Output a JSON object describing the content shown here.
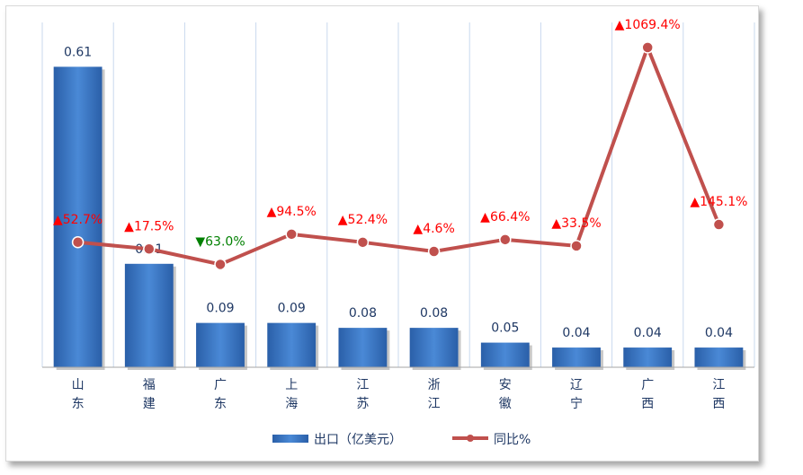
{
  "chart_data": {
    "type": "bar",
    "categories": [
      "山东",
      "福建",
      "广东",
      "上海",
      "江苏",
      "浙江",
      "安徽",
      "辽宁",
      "广西",
      "江西"
    ],
    "series": [
      {
        "name": "出口（亿美元）",
        "type": "bar",
        "values": [
          0.61,
          0.21,
          0.09,
          0.09,
          0.08,
          0.08,
          0.05,
          0.04,
          0.04,
          0.04
        ],
        "labels": [
          "0.61",
          "0.21",
          "0.09",
          "0.09",
          "0.08",
          "0.08",
          "0.05",
          "0.04",
          "0.04",
          "0.04"
        ],
        "color": "#2e6bbf"
      },
      {
        "name": "同比%",
        "type": "line",
        "values": [
          52.7,
          17.5,
          -63.0,
          94.5,
          52.4,
          4.6,
          66.4,
          33.5,
          1069.4,
          145.1
        ],
        "labels": [
          "▲52.7%",
          "▲17.5%",
          "▼63.0%",
          "▲94.5%",
          "▲52.4%",
          "▲4.6%",
          "▲66.4%",
          "▲33.5%",
          "▲1069.4%",
          "▲145.1%"
        ],
        "color": "#c0504d"
      }
    ],
    "up_color": "#ff0000",
    "down_color": "#008000",
    "bar_ylim": [
      0,
      0.7
    ],
    "line_ylim": [
      -600,
      1200
    ],
    "grid": "vertical",
    "legend": "bottom-center"
  }
}
